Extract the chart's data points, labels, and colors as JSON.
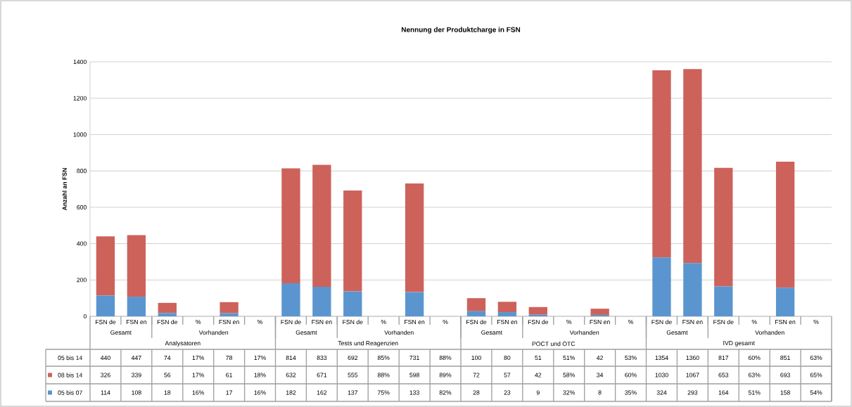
{
  "chart_data": {
    "type": "bar",
    "stacked": true,
    "title": "Nennung der Produktcharge in FSN",
    "ylabel": "Anzahl an FSN",
    "categories": [
      "FSN de",
      "FSN en",
      "FSN de",
      "%",
      "FSN en",
      "%",
      "FSN de",
      "FSN en",
      "FSN de",
      "%",
      "FSN en",
      "%",
      "FSN de",
      "FSN en",
      "FSN de",
      "%",
      "FSN en",
      "%",
      "FSN de",
      "FSN en",
      "FSN de",
      "%",
      "FSN en",
      "%"
    ],
    "series": [
      {
        "name": "05 bis 07",
        "color": "#5b95cf",
        "values": [
          114,
          108,
          18,
          null,
          17,
          null,
          182,
          162,
          137,
          null,
          133,
          null,
          28,
          23,
          9,
          null,
          8,
          null,
          324,
          293,
          164,
          null,
          158,
          null
        ],
        "value_labels": [
          "114",
          "108",
          "18",
          "16%",
          "17",
          "16%",
          "182",
          "162",
          "137",
          "75%",
          "133",
          "82%",
          "28",
          "23",
          "9",
          "32%",
          "8",
          "35%",
          "324",
          "293",
          "164",
          "51%",
          "158",
          "54%"
        ]
      },
      {
        "name": "08 bis 14",
        "color": "#cd625b",
        "values": [
          326,
          339,
          56,
          null,
          61,
          null,
          632,
          671,
          555,
          null,
          598,
          null,
          72,
          57,
          42,
          null,
          34,
          null,
          1030,
          1067,
          653,
          null,
          693,
          null
        ],
        "value_labels": [
          "326",
          "339",
          "56",
          "17%",
          "61",
          "18%",
          "632",
          "671",
          "555",
          "88%",
          "598",
          "89%",
          "72",
          "57",
          "42",
          "58%",
          "34",
          "60%",
          "1030",
          "1067",
          "653",
          "63%",
          "693",
          "65%"
        ]
      }
    ],
    "annotations": [
      "05 bis 14",
      "Gesamt",
      "Vorhanden",
      "Analysatoren",
      "Gesamt",
      "Vorhanden",
      "Tests und Reagenzien",
      "Gesamt",
      "Vorhanden",
      "POCT und OTC",
      "Gesamt",
      "Vorhanden",
      "IVD gesamt",
      "440",
      "447",
      "74",
      "17%",
      "78",
      "17%",
      "814",
      "833",
      "692",
      "85%",
      "731",
      "88%",
      "100",
      "80",
      "51",
      "51%",
      "42",
      "53%",
      "1354",
      "1360",
      "817",
      "60%",
      "851",
      "63%"
    ],
    "ylim": [
      0,
      1400
    ],
    "yticks": [
      0,
      200,
      400,
      600,
      800,
      1000,
      1200,
      1400
    ],
    "grid": "y",
    "legend": "bottom left"
  }
}
